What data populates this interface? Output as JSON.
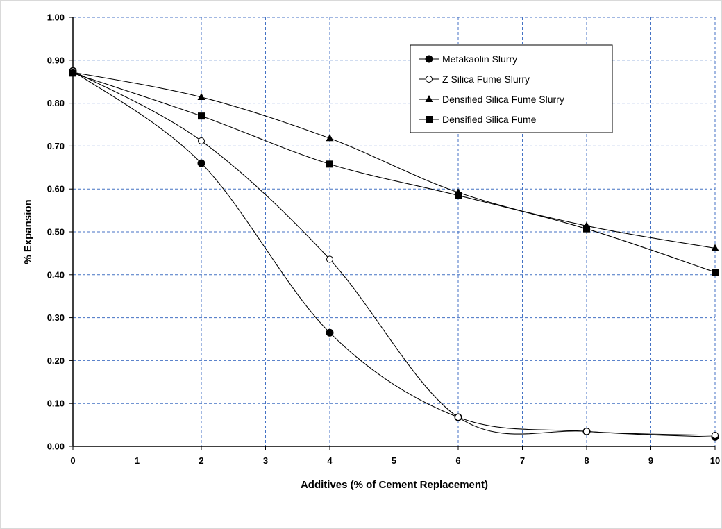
{
  "chart_data": {
    "type": "line",
    "title": "",
    "xlabel": "Additives (% of Cement Replacement)",
    "ylabel": "% Expansion",
    "xlim": [
      0,
      10
    ],
    "ylim": [
      0,
      1.0
    ],
    "x_ticks": [
      "0",
      "1",
      "2",
      "3",
      "4",
      "5",
      "6",
      "7",
      "8",
      "9",
      "10"
    ],
    "y_ticks": [
      "0.00",
      "0.10",
      "0.20",
      "0.30",
      "0.40",
      "0.50",
      "0.60",
      "0.70",
      "0.80",
      "0.90",
      "1.00"
    ],
    "grid": true,
    "grid_style": "dashed",
    "grid_color": "#4472c4",
    "smooth_lines": true,
    "legend_position": "top-right inside",
    "series": [
      {
        "name": "Metakaolin Slurry",
        "marker": "filled-circle",
        "x": [
          0,
          2,
          4,
          6,
          8,
          10
        ],
        "y": [
          0.875,
          0.66,
          0.265,
          0.068,
          0.035,
          0.022
        ]
      },
      {
        "name": "Z Silica Fume Slurry",
        "marker": "open-circle",
        "x": [
          0,
          2,
          4,
          6,
          8,
          10
        ],
        "y": [
          0.875,
          0.712,
          0.436,
          0.068,
          0.035,
          0.026
        ]
      },
      {
        "name": "Densified Silica Fume Slurry",
        "marker": "filled-triangle",
        "x": [
          0,
          2,
          4,
          6,
          8,
          10
        ],
        "y": [
          0.872,
          0.814,
          0.718,
          0.592,
          0.514,
          0.462
        ]
      },
      {
        "name": "Densified Silica Fume",
        "marker": "filled-square",
        "x": [
          0,
          2,
          4,
          6,
          8,
          10
        ],
        "y": [
          0.87,
          0.77,
          0.658,
          0.585,
          0.507,
          0.406
        ]
      }
    ]
  }
}
